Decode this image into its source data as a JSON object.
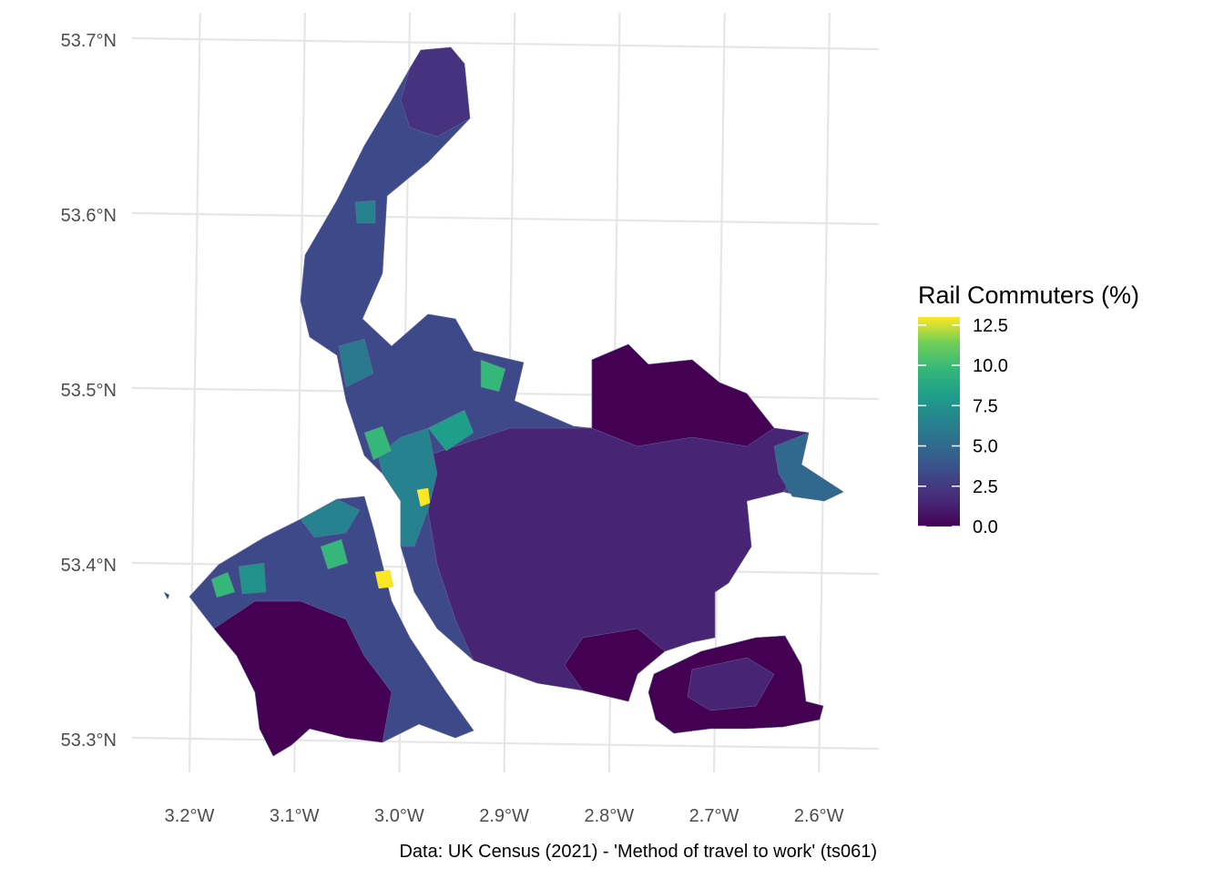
{
  "map": {
    "x_axis": {
      "ticks": [
        "3.2°W",
        "3.1°W",
        "3.0°W",
        "2.9°W",
        "2.8°W",
        "2.7°W",
        "2.6°W"
      ],
      "values": [
        -3.2,
        -3.1,
        -3.0,
        -2.9,
        -2.8,
        -2.7,
        -2.6
      ]
    },
    "y_axis": {
      "ticks": [
        "53.3°N",
        "53.4°N",
        "53.5°N",
        "53.6°N",
        "53.7°N"
      ],
      "values": [
        53.3,
        53.4,
        53.5,
        53.6,
        53.7
      ]
    },
    "legend": {
      "title": "Rail Commuters (%)",
      "labels": [
        "12.5",
        "10.0",
        "7.5",
        "5.0",
        "2.5",
        "0.0"
      ],
      "values": [
        12.5,
        10.0,
        7.5,
        5.0,
        2.5,
        0.0
      ],
      "colorscale": "viridis",
      "range": [
        0,
        13
      ]
    },
    "caption": "Data: UK Census (2021) - 'Method of travel to work' (ts061)",
    "colors": {
      "background": "#ffffff",
      "grid": "#e6e6e6",
      "low": "#440154",
      "mid": "#21918c",
      "high": "#fde725"
    }
  }
}
